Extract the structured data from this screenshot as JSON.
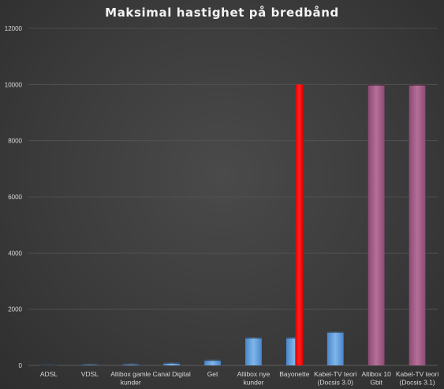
{
  "chart_data": {
    "type": "bar",
    "title": "Maksimal hastighet på bredbånd",
    "xlabel": "",
    "ylabel": "",
    "ylim": [
      0,
      12000
    ],
    "yticks": [
      0,
      2000,
      4000,
      6000,
      8000,
      10000,
      12000
    ],
    "grid": true,
    "legend": "none",
    "categories": [
      [
        "ADSL"
      ],
      [
        "VDSL"
      ],
      [
        "Altibox gamle",
        "kunder"
      ],
      [
        "Canal Digital"
      ],
      [
        "Get"
      ],
      [
        "Altibox nye",
        "kunder"
      ],
      [
        "Bayonette"
      ],
      [
        "Kabel-TV teori",
        "(Docsis 3.0)"
      ],
      [
        "Altibox 10",
        "Gbit"
      ],
      [
        "Kabel-TV teori",
        "(Docsis 3.1)"
      ]
    ],
    "values": [
      24,
      50,
      60,
      100,
      200,
      1000,
      1000,
      1200,
      10000,
      10000
    ],
    "bar_colors": [
      "#5b9bd5",
      "#5b9bd5",
      "#5b9bd5",
      "#5b9bd5",
      "#5b9bd5",
      "#5b9bd5",
      "#5b9bd5",
      "#5b9bd5",
      "#a05a86",
      "#a05a86"
    ],
    "overlay": {
      "category_index": 6,
      "value": 10000,
      "color": "#ff0000"
    }
  }
}
